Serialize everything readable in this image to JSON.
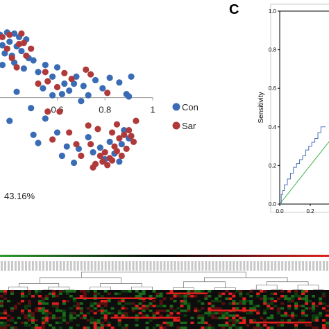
{
  "colors": {
    "con": "#3a6cb5",
    "sar": "#b03a3a",
    "roc_curve": "#4a6fb5",
    "diag": "#3cb34a",
    "heat_bg": "#0d0d0d",
    "heat_hot": "#e0201c",
    "heat_green": "#1a6a1a"
  },
  "panel_a": {
    "percent_label": "43.16%"
  },
  "panel_c": {
    "letter": "C"
  },
  "chart_data": [
    {
      "type": "scatter",
      "xticks": [
        "0.6",
        "0.8",
        "1"
      ],
      "xlim": [
        0.36,
        1.0
      ],
      "ylim": [
        -0.7,
        0.6
      ],
      "legend": {
        "placement": "right",
        "entries": [
          "Con",
          "Sar"
        ]
      },
      "series": [
        {
          "name": "Con",
          "points": [
            [
              0.36,
              0.54
            ],
            [
              0.39,
              0.56
            ],
            [
              0.42,
              0.55
            ],
            [
              0.44,
              0.52
            ],
            [
              0.37,
              0.45
            ],
            [
              0.4,
              0.48
            ],
            [
              0.43,
              0.44
            ],
            [
              0.47,
              0.5
            ],
            [
              0.38,
              0.38
            ],
            [
              0.41,
              0.36
            ],
            [
              0.45,
              0.4
            ],
            [
              0.48,
              0.34
            ],
            [
              0.37,
              0.28
            ],
            [
              0.42,
              0.3
            ],
            [
              0.46,
              0.25
            ],
            [
              0.5,
              0.32
            ],
            [
              0.52,
              0.22
            ],
            [
              0.55,
              0.28
            ],
            [
              0.58,
              0.18
            ],
            [
              0.6,
              0.26
            ],
            [
              0.63,
              0.12
            ],
            [
              0.65,
              0.06
            ],
            [
              0.68,
              0.18
            ],
            [
              0.71,
              0.1
            ],
            [
              0.73,
              0.02
            ],
            [
              0.76,
              0.15
            ],
            [
              0.79,
              0.08
            ],
            [
              0.82,
              0.17
            ],
            [
              0.86,
              0.13
            ],
            [
              0.89,
              0.03
            ],
            [
              0.91,
              0.18
            ],
            [
              0.9,
              0.01
            ],
            [
              0.54,
              0.08
            ],
            [
              0.58,
              0.02
            ],
            [
              0.62,
              0.03
            ],
            [
              0.67,
              0.12
            ],
            [
              0.7,
              -0.03
            ],
            [
              0.49,
              -0.09
            ],
            [
              0.43,
              0.05
            ],
            [
              0.4,
              -0.2
            ],
            [
              0.5,
              -0.32
            ],
            [
              0.52,
              -0.39
            ],
            [
              0.6,
              -0.3
            ],
            [
              0.64,
              -0.42
            ],
            [
              0.67,
              -0.56
            ],
            [
              0.73,
              -0.34
            ],
            [
              0.78,
              -0.43
            ],
            [
              0.82,
              -0.38
            ],
            [
              0.84,
              -0.48
            ],
            [
              0.87,
              -0.4
            ],
            [
              0.88,
              -0.28
            ],
            [
              0.9,
              -0.35
            ],
            [
              0.86,
              -0.55
            ],
            [
              0.75,
              -0.47
            ],
            [
              0.8,
              -0.53
            ],
            [
              0.69,
              -0.44
            ],
            [
              0.55,
              -0.18
            ],
            [
              0.62,
              -0.5
            ]
          ]
        },
        {
          "name": "Sar",
          "points": [
            [
              0.37,
              0.52
            ],
            [
              0.4,
              0.54
            ],
            [
              0.45,
              0.55
            ],
            [
              0.46,
              0.47
            ],
            [
              0.39,
              0.42
            ],
            [
              0.44,
              0.46
            ],
            [
              0.41,
              0.34
            ],
            [
              0.47,
              0.36
            ],
            [
              0.43,
              0.26
            ],
            [
              0.49,
              0.42
            ],
            [
              0.55,
              0.22
            ],
            [
              0.52,
              0.12
            ],
            [
              0.56,
              0.14
            ],
            [
              0.6,
              0.09
            ],
            [
              0.63,
              0.21
            ],
            [
              0.66,
              0.16
            ],
            [
              0.72,
              0.24
            ],
            [
              0.74,
              0.2
            ],
            [
              0.81,
              0.04
            ],
            [
              0.61,
              -0.12
            ],
            [
              0.65,
              -0.3
            ],
            [
              0.73,
              -0.24
            ],
            [
              0.77,
              -0.27
            ],
            [
              0.83,
              -0.3
            ],
            [
              0.85,
              -0.23
            ],
            [
              0.88,
              -0.32
            ],
            [
              0.9,
              -0.28
            ],
            [
              0.92,
              -0.38
            ],
            [
              0.93,
              -0.2
            ],
            [
              0.85,
              -0.46
            ],
            [
              0.82,
              -0.52
            ],
            [
              0.79,
              -0.55
            ],
            [
              0.78,
              -0.5
            ],
            [
              0.76,
              -0.57
            ],
            [
              0.75,
              -0.6
            ],
            [
              0.81,
              -0.58
            ],
            [
              0.83,
              -0.54
            ],
            [
              0.87,
              -0.5
            ],
            [
              0.89,
              -0.44
            ],
            [
              0.91,
              -0.33
            ],
            [
              0.86,
              -0.35
            ],
            [
              0.8,
              -0.47
            ],
            [
              0.7,
              -0.5
            ],
            [
              0.68,
              -0.4
            ],
            [
              0.74,
              -0.4
            ],
            [
              0.84,
              -0.42
            ],
            [
              0.58,
              -0.36
            ],
            [
              0.56,
              -0.12
            ]
          ]
        }
      ]
    },
    {
      "type": "line",
      "ylabel": "Sensitivity",
      "yticks": [
        "0.0",
        "0.2",
        "0.4",
        "0.6",
        "0.8",
        "1.0"
      ],
      "xticks": [
        "0.0",
        "0.2"
      ],
      "xlim": [
        0.0,
        1.0
      ],
      "ylim": [
        0.0,
        1.0
      ],
      "series": [
        {
          "name": "",
          "x": [
            0.0,
            0.01,
            0.02,
            0.03,
            0.05,
            0.07,
            0.09,
            0.11,
            0.13,
            0.15,
            0.17,
            0.19,
            0.21,
            0.23,
            0.25,
            0.27,
            0.29,
            0.3
          ],
          "y": [
            0.0,
            0.05,
            0.07,
            0.1,
            0.13,
            0.16,
            0.19,
            0.21,
            0.23,
            0.25,
            0.28,
            0.3,
            0.32,
            0.34,
            0.37,
            0.4,
            0.4,
            0.4
          ]
        },
        {
          "name": "",
          "x": [
            0.0,
            1.0
          ],
          "y": [
            0.0,
            1.0
          ]
        }
      ]
    },
    {
      "type": "heatmap",
      "rows": 16,
      "cols": 95
    }
  ]
}
